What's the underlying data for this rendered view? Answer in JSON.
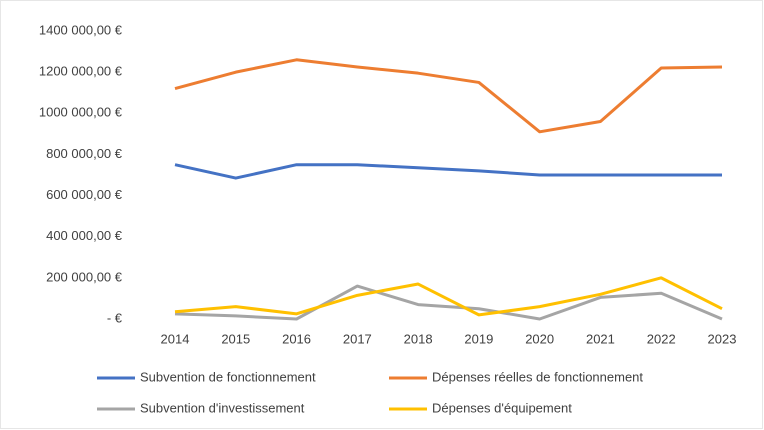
{
  "chart_data": {
    "type": "line",
    "categories": [
      "2014",
      "2015",
      "2016",
      "2017",
      "2018",
      "2019",
      "2020",
      "2021",
      "2022",
      "2023"
    ],
    "series": [
      {
        "name": "Subvention de fonctionnement",
        "color": "#4472c4",
        "values": [
          750000,
          685000,
          750000,
          750000,
          735000,
          720000,
          700000,
          700000,
          700000,
          700000
        ]
      },
      {
        "name": "Dépenses réelles de fonctionnement",
        "color": "#ed7d31",
        "values": [
          1120000,
          1200000,
          1260000,
          1225000,
          1195000,
          1150000,
          910000,
          960000,
          1220000,
          1225000
        ]
      },
      {
        "name": "Subvention d'investissement",
        "color": "#a5a5a5",
        "values": [
          25000,
          15000,
          0,
          160000,
          70000,
          50000,
          0,
          105000,
          125000,
          0
        ]
      },
      {
        "name": "Dépenses d'équipement",
        "color": "#ffc000",
        "values": [
          35000,
          60000,
          25000,
          115000,
          170000,
          20000,
          60000,
          120000,
          200000,
          50000
        ]
      }
    ],
    "ylim": [
      0,
      1400000
    ],
    "yticks": [
      {
        "value": 0,
        "label": "-  €"
      },
      {
        "value": 200000,
        "label": "200 000,00 €"
      },
      {
        "value": 400000,
        "label": "400 000,00 €"
      },
      {
        "value": 600000,
        "label": "600 000,00 €"
      },
      {
        "value": 800000,
        "label": "800 000,00 €"
      },
      {
        "value": 1000000,
        "label": "1000 000,00 €"
      },
      {
        "value": 1200000,
        "label": "1200 000,00 €"
      },
      {
        "value": 1400000,
        "label": "1400 000,00 €"
      }
    ],
    "grid": false
  }
}
